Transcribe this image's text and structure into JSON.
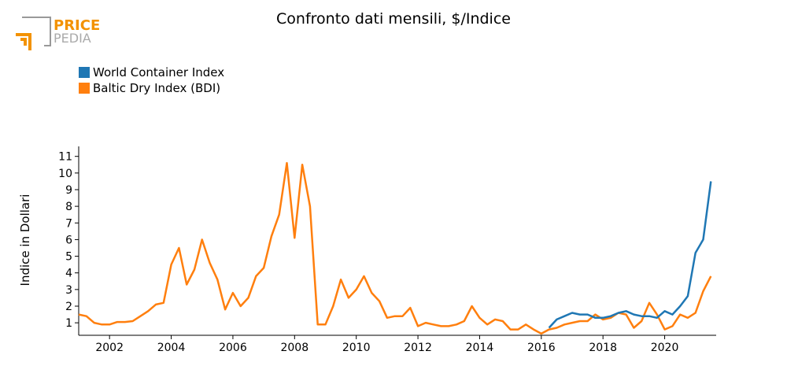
{
  "logo": {
    "top": "PRICE",
    "bottom": "PEDIA"
  },
  "chart_data": {
    "type": "line",
    "title": "Confronto dati mensili, $/Indice",
    "ylabel": "Indice in Dollari",
    "legend": "upper left",
    "grid": false,
    "xlim": [
      2001,
      2021.67
    ],
    "ylim": [
      0.25,
      11.6
    ],
    "xticks": [
      2002,
      2004,
      2006,
      2008,
      2010,
      2012,
      2014,
      2016,
      2018,
      2020
    ],
    "yticks": [
      1,
      2,
      3,
      4,
      5,
      6,
      7,
      8,
      9,
      10,
      11
    ],
    "x": [
      2001,
      2001.25,
      2001.5,
      2001.75,
      2002,
      2002.25,
      2002.5,
      2002.75,
      2003,
      2003.25,
      2003.5,
      2003.75,
      2004,
      2004.25,
      2004.5,
      2004.75,
      2005,
      2005.25,
      2005.5,
      2005.75,
      2006,
      2006.25,
      2006.5,
      2006.75,
      2007,
      2007.25,
      2007.5,
      2007.75,
      2008,
      2008.25,
      2008.5,
      2008.75,
      2009,
      2009.25,
      2009.5,
      2009.75,
      2010,
      2010.25,
      2010.5,
      2010.75,
      2011,
      2011.25,
      2011.5,
      2011.75,
      2012,
      2012.25,
      2012.5,
      2012.75,
      2013,
      2013.25,
      2013.5,
      2013.75,
      2014,
      2014.25,
      2014.5,
      2014.75,
      2015,
      2015.25,
      2015.5,
      2015.75,
      2016,
      2016.25,
      2016.5,
      2016.75,
      2017,
      2017.25,
      2017.5,
      2017.75,
      2018,
      2018.25,
      2018.5,
      2018.75,
      2019,
      2019.25,
      2019.5,
      2019.75,
      2020,
      2020.25,
      2020.5,
      2020.75,
      2021,
      2021.25,
      2021.5
    ],
    "series": [
      {
        "name": "World Container Index",
        "color": "#1f77b4",
        "values": [
          null,
          null,
          null,
          null,
          null,
          null,
          null,
          null,
          null,
          null,
          null,
          null,
          null,
          null,
          null,
          null,
          null,
          null,
          null,
          null,
          null,
          null,
          null,
          null,
          null,
          null,
          null,
          null,
          null,
          null,
          null,
          null,
          null,
          null,
          null,
          null,
          null,
          null,
          null,
          null,
          null,
          null,
          null,
          null,
          null,
          null,
          null,
          null,
          null,
          null,
          null,
          null,
          null,
          null,
          null,
          null,
          null,
          null,
          null,
          null,
          null,
          0.7,
          1.2,
          1.4,
          1.6,
          1.5,
          1.5,
          1.3,
          1.3,
          1.4,
          1.6,
          1.7,
          1.5,
          1.4,
          1.4,
          1.3,
          1.7,
          1.5,
          2.0,
          2.6,
          5.2,
          6.0,
          9.5
        ]
      },
      {
        "name": "Baltic Dry Index (BDI)",
        "color": "#ff7f0e",
        "values": [
          1.5,
          1.4,
          1.0,
          0.9,
          0.9,
          1.05,
          1.05,
          1.1,
          1.4,
          1.7,
          2.1,
          2.2,
          4.5,
          5.5,
          3.3,
          4.2,
          6.0,
          4.6,
          3.6,
          1.8,
          2.8,
          2.0,
          2.5,
          3.8,
          4.3,
          6.2,
          7.5,
          10.6,
          6.1,
          10.5,
          8.0,
          0.9,
          0.9,
          2.0,
          3.6,
          2.5,
          3.0,
          3.8,
          2.8,
          2.3,
          1.3,
          1.4,
          1.4,
          1.9,
          0.8,
          1.0,
          0.9,
          0.8,
          0.8,
          0.9,
          1.1,
          2.0,
          1.3,
          0.9,
          1.2,
          1.1,
          0.6,
          0.6,
          0.9,
          0.6,
          0.35,
          0.6,
          0.7,
          0.9,
          1.0,
          1.1,
          1.1,
          1.5,
          1.2,
          1.3,
          1.6,
          1.5,
          0.7,
          1.1,
          2.2,
          1.5,
          0.6,
          0.8,
          1.5,
          1.3,
          1.6,
          2.9,
          3.8
        ]
      }
    ]
  }
}
